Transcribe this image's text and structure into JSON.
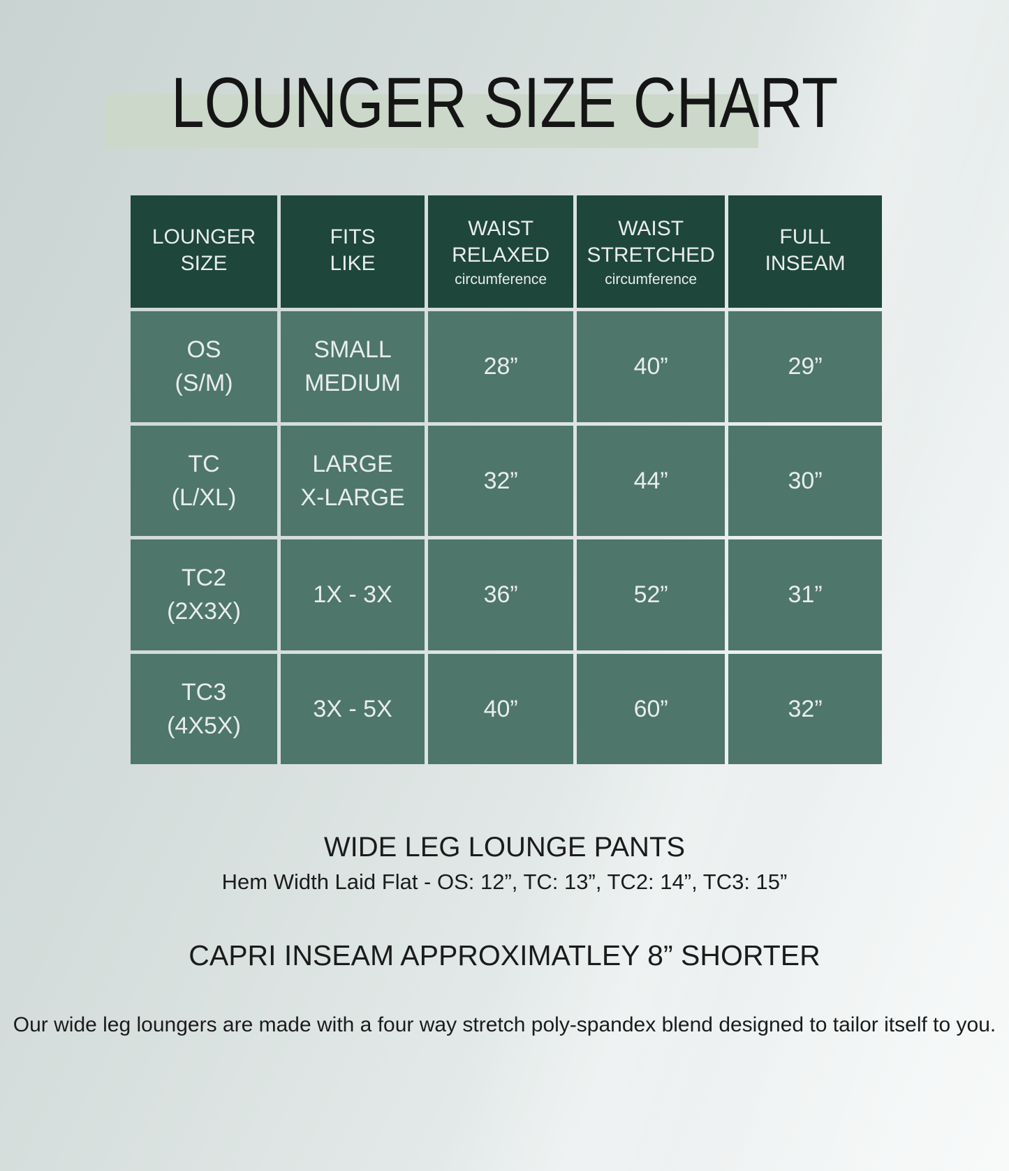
{
  "title": "LOUNGER SIZE CHART",
  "colors": {
    "header_bg": "#1e463b",
    "cell_bg": "#4e766b",
    "divider": "#e7edea",
    "title_highlight": "#cbd8ca",
    "cell_text": "#e9edea",
    "dark_text": "#1b1b1b",
    "background_top_left": "#c9d4d2",
    "background_bottom_right": "#f3f6f6"
  },
  "table": {
    "columns": [
      {
        "title_line1": "LOUNGER",
        "title_line2": "SIZE",
        "subtitle": ""
      },
      {
        "title_line1": "FITS",
        "title_line2": "LIKE",
        "subtitle": ""
      },
      {
        "title_line1": "WAIST",
        "title_line2": "RELAXED",
        "subtitle": "circumference"
      },
      {
        "title_line1": "WAIST",
        "title_line2": "STRETCHED",
        "subtitle": "circumference"
      },
      {
        "title_line1": "FULL",
        "title_line2": "INSEAM",
        "subtitle": ""
      }
    ],
    "rows": [
      {
        "size_line1": "OS",
        "size_line2": "(S/M)",
        "fits_line1": "SMALL",
        "fits_line2": "MEDIUM",
        "waist_relaxed": "28”",
        "waist_stretched": "40”",
        "inseam": "29”"
      },
      {
        "size_line1": "TC",
        "size_line2": "(L/XL)",
        "fits_line1": "LARGE",
        "fits_line2": "X-LARGE",
        "waist_relaxed": "32”",
        "waist_stretched": "44”",
        "inseam": "30”"
      },
      {
        "size_line1": "TC2",
        "size_line2": "(2X3X)",
        "fits_line1": "1X - 3X",
        "fits_line2": "",
        "waist_relaxed": "36”",
        "waist_stretched": "52”",
        "inseam": "31”"
      },
      {
        "size_line1": "TC3",
        "size_line2": "(4X5X)",
        "fits_line1": "3X - 5X",
        "fits_line2": "",
        "waist_relaxed": "40”",
        "waist_stretched": "60”",
        "inseam": "32”"
      }
    ]
  },
  "footer": {
    "pants_title": "WIDE LEG LOUNGE PANTS",
    "hem_note": "Hem Width Laid Flat - OS: 12”, TC: 13”, TC2: 14”, TC3: 15”",
    "capri_note": "CAPRI INSEAM APPROXIMATLEY 8” SHORTER",
    "fabric_line1": "Our wide leg loungers are made with a four way stretch poly-spandex blend",
    "fabric_line2": "designed to tailor itself to you."
  },
  "chart_data": {
    "type": "table",
    "title": "LOUNGER SIZE CHART",
    "columns": [
      "LOUNGER SIZE",
      "FITS LIKE",
      "WAIST RELAXED circumference",
      "WAIST STRETCHED circumference",
      "FULL INSEAM"
    ],
    "rows": [
      [
        "OS (S/M)",
        "SMALL MEDIUM",
        "28”",
        "40”",
        "29”"
      ],
      [
        "TC (L/XL)",
        "LARGE X-LARGE",
        "32”",
        "44”",
        "30”"
      ],
      [
        "TC2 (2X3X)",
        "1X - 3X",
        "36”",
        "52”",
        "31”"
      ],
      [
        "TC3 (4X5X)",
        "3X - 5X",
        "40”",
        "60”",
        "32”"
      ]
    ],
    "notes": [
      "WIDE LEG LOUNGE PANTS",
      "Hem Width Laid Flat - OS: 12”, TC: 13”, TC2: 14”, TC3: 15”",
      "CAPRI INSEAM APPROXIMATLEY 8” SHORTER",
      "Our wide leg loungers are made with a four way stretch poly-spandex blend designed to tailor itself to you."
    ]
  }
}
